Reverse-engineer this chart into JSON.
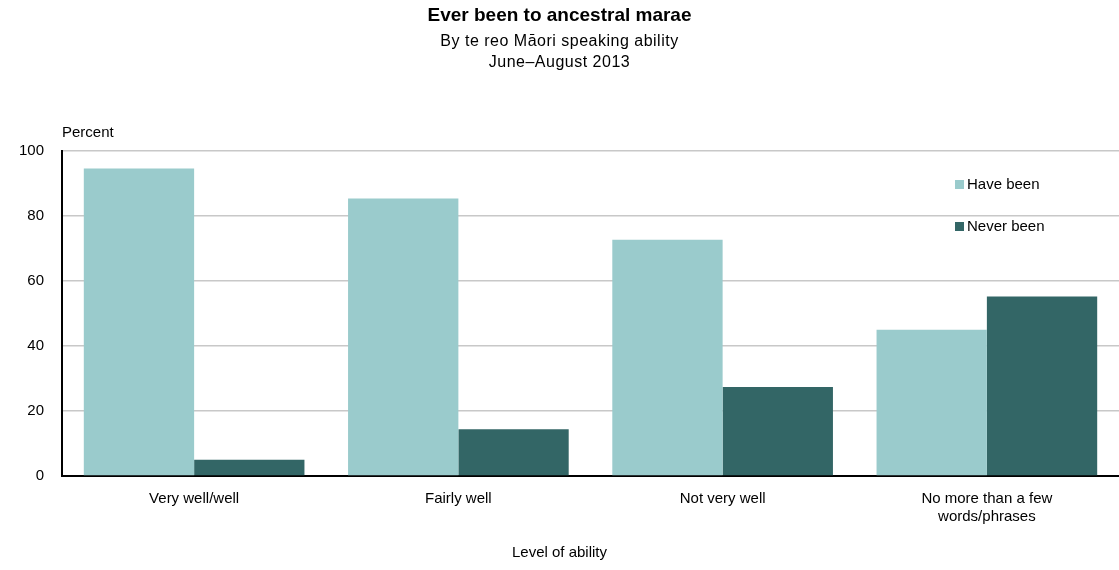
{
  "chart_data": {
    "type": "bar",
    "title": "Ever been to ancestral marae",
    "subtitle": "By te reo Māori speaking ability\nJune–August 2013",
    "xlabel": "Level of ability",
    "ylabel": "Percent",
    "categories": [
      "Very well/well",
      "Fairly well",
      "Not very well",
      "No more than a few words/phrases"
    ],
    "series": [
      {
        "name": "Have been",
        "color": "#9acbcc",
        "values": [
          94.6,
          85.4,
          72.7,
          45.0
        ]
      },
      {
        "name": "Never been",
        "color": "#336666",
        "values": [
          5.0,
          14.4,
          27.4,
          55.2
        ]
      }
    ],
    "ylim": [
      0,
      100
    ],
    "yticks": [
      0,
      20,
      40,
      60,
      80,
      100
    ],
    "grid": "y",
    "legend": "top right"
  }
}
